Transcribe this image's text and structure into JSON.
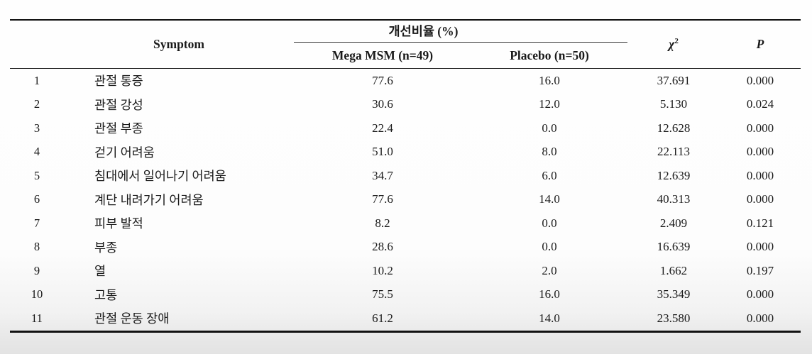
{
  "table": {
    "header": {
      "symptom": "Symptom",
      "improvement_group": "개선비율 (%)",
      "mega_msm": "Mega MSM (n=49)",
      "placebo": "Placebo (n=50)",
      "chi_square_base": "χ",
      "chi_square_sup": "2",
      "p": "P"
    },
    "rows": [
      {
        "no": "1",
        "symptom": "관절 통증",
        "mega_msm": "77.6",
        "placebo": "16.0",
        "chi_square": "37.691",
        "p": "0.000"
      },
      {
        "no": "2",
        "symptom": "관절 강성",
        "mega_msm": "30.6",
        "placebo": "12.0",
        "chi_square": "5.130",
        "p": "0.024"
      },
      {
        "no": "3",
        "symptom": "관절 부종",
        "mega_msm": "22.4",
        "placebo": "0.0",
        "chi_square": "12.628",
        "p": "0.000"
      },
      {
        "no": "4",
        "symptom": "걷기 어려움",
        "mega_msm": "51.0",
        "placebo": "8.0",
        "chi_square": "22.113",
        "p": "0.000"
      },
      {
        "no": "5",
        "symptom": "침대에서 일어나기 어려움",
        "mega_msm": "34.7",
        "placebo": "6.0",
        "chi_square": "12.639",
        "p": "0.000"
      },
      {
        "no": "6",
        "symptom": "계단 내려가기 어려움",
        "mega_msm": "77.6",
        "placebo": "14.0",
        "chi_square": "40.313",
        "p": "0.000"
      },
      {
        "no": "7",
        "symptom": "피부 발적",
        "mega_msm": "8.2",
        "placebo": "0.0",
        "chi_square": "2.409",
        "p": "0.121"
      },
      {
        "no": "8",
        "symptom": "부종",
        "mega_msm": "28.6",
        "placebo": "0.0",
        "chi_square": "16.639",
        "p": "0.000"
      },
      {
        "no": "9",
        "symptom": "열",
        "mega_msm": "10.2",
        "placebo": "2.0",
        "chi_square": "1.662",
        "p": "0.197"
      },
      {
        "no": "10",
        "symptom": "고통",
        "mega_msm": "75.5",
        "placebo": "16.0",
        "chi_square": "35.349",
        "p": "0.000"
      },
      {
        "no": "11",
        "symptom": "관절 운동 장애",
        "mega_msm": "61.2",
        "placebo": "14.0",
        "chi_square": "23.580",
        "p": "0.000"
      }
    ]
  }
}
